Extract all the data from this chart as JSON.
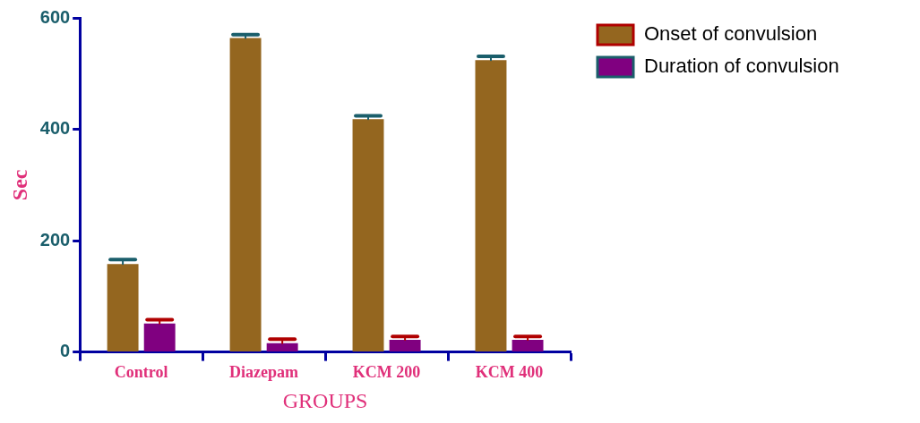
{
  "chart_data": {
    "type": "bar",
    "xlabel": "GROUPS",
    "ylabel": "Sec",
    "categories": [
      "Control",
      "Diazepam",
      "KCM 200",
      "KCM 400"
    ],
    "series": [
      {
        "name": "Onset of convulsion",
        "color": "#94661f",
        "values": [
          158,
          564,
          418,
          524
        ],
        "errors": [
          8,
          6,
          6,
          7
        ]
      },
      {
        "name": "Duration of convulsion",
        "color": "#800080",
        "values": [
          51,
          16,
          22,
          22
        ],
        "errors": [
          7,
          7,
          6,
          6
        ]
      }
    ],
    "ylim": [
      0,
      600
    ],
    "yticks": [
      0,
      200,
      400,
      600
    ],
    "grid": false,
    "legend": "top right"
  }
}
